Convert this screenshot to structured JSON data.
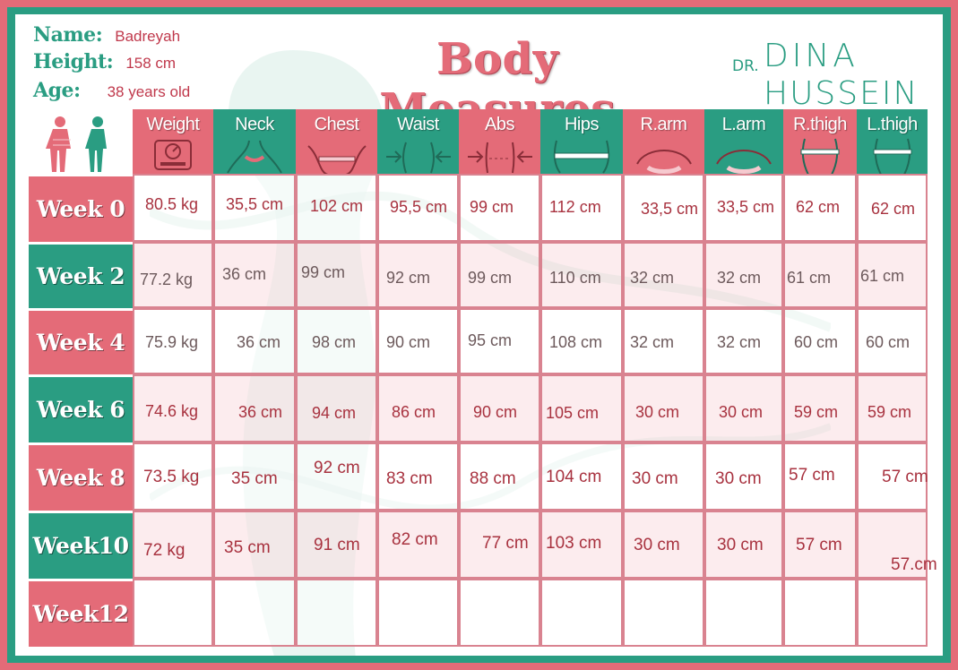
{
  "info": {
    "name_label": "Name:",
    "name_value": "Badreyah",
    "height_label": "Height:",
    "height_value": "158 cm",
    "age_label": "Age:",
    "age_value": "38 years old"
  },
  "title": "Body Measures",
  "logo": {
    "dr": "DR.",
    "line1": "DINA",
    "line2": "HUSSEIN"
  },
  "colors": {
    "pink": "#e46b78",
    "green": "#2a9d82",
    "value": "#a8323f",
    "border": "#d98390"
  },
  "columns": [
    {
      "label": "",
      "icon": "body-silhouettes-icon"
    },
    {
      "label": "Weight",
      "icon": "scale-icon"
    },
    {
      "label": "Neck",
      "icon": "neck-tape-icon"
    },
    {
      "label": "Chest",
      "icon": "chest-tape-icon"
    },
    {
      "label": "Waist",
      "icon": "waist-arrows-icon"
    },
    {
      "label": "Abs",
      "icon": "abs-arrows-icon"
    },
    {
      "label": "Hips",
      "icon": "hips-tape-icon"
    },
    {
      "label": "R.arm",
      "icon": "arm-tape-icon"
    },
    {
      "label": "L.arm",
      "icon": "arm-tape-icon"
    },
    {
      "label": "R.thigh",
      "icon": "thigh-tape-icon"
    },
    {
      "label": "L.thigh",
      "icon": "thigh-tape-icon"
    }
  ],
  "rows": [
    {
      "label": "Week 0",
      "values": [
        "80.5 kg",
        "35,5 cm",
        "102 cm",
        "95,5 cm",
        "99 cm",
        "112 cm",
        "33,5 cm",
        "33,5 cm",
        "62 cm",
        "62 cm"
      ]
    },
    {
      "label": "Week 2",
      "values": [
        "77.2 kg",
        "36 cm",
        "99 cm",
        "92 cm",
        "99 cm",
        "110 cm",
        "32 cm",
        "32 cm",
        "61 cm",
        "61 cm"
      ]
    },
    {
      "label": "Week 4",
      "values": [
        "75.9 kg",
        "36 cm",
        "98 cm",
        "90 cm",
        "95 cm",
        "108 cm",
        "32 cm",
        "32 cm",
        "60 cm",
        "60 cm"
      ]
    },
    {
      "label": "Week 6",
      "values": [
        "74.6 kg",
        "36 cm",
        "94 cm",
        "86 cm",
        "90 cm",
        "105 cm",
        "30 cm",
        "30 cm",
        "59 cm",
        "59 cm"
      ]
    },
    {
      "label": "Week 8",
      "values": [
        "73.5 kg",
        "35 cm",
        "92 cm",
        "83 cm",
        "88 cm",
        "104 cm",
        "30 cm",
        "30 cm",
        "57 cm",
        "57 cm"
      ]
    },
    {
      "label": "Week10",
      "values": [
        "72 kg",
        "35 cm",
        "91 cm",
        "82 cm",
        "77 cm",
        "103 cm",
        "30 cm",
        "30 cm",
        "57 cm",
        "57.cm"
      ]
    },
    {
      "label": "Week12",
      "values": [
        "",
        "",
        "",
        "",
        "",
        "",
        "",
        "",
        "",
        ""
      ]
    }
  ]
}
